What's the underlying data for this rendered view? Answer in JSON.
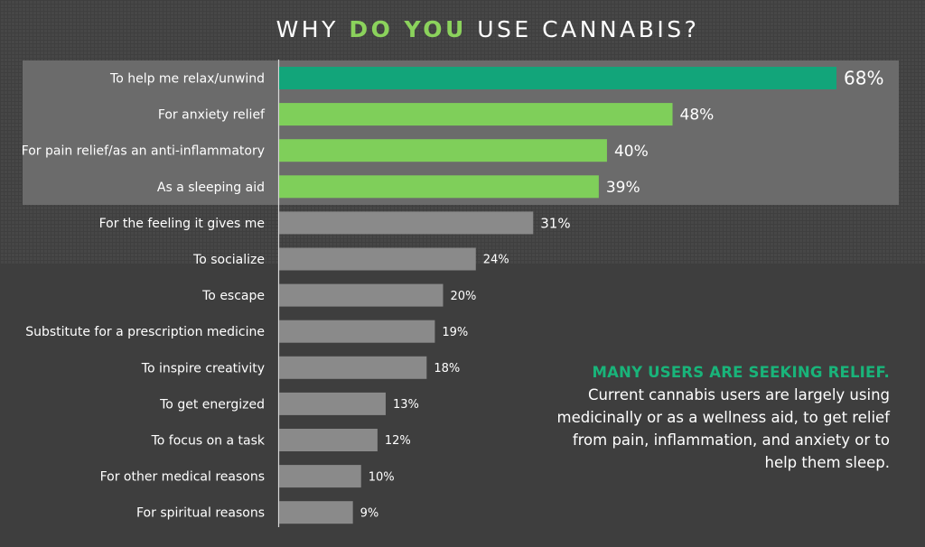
{
  "title": {
    "part1": "WHY ",
    "highlight": "DO YOU",
    "part2": " USE CANNABIS?"
  },
  "callout": {
    "heading": "MANY USERS ARE SEEKING RELIEF.",
    "body": "Current cannabis users are largely using medicinally or as a wellness aid, to get relief from pain, inflammation, and anxiety or to help them sleep."
  },
  "colors": {
    "top_bar": "#12a57a",
    "highlight_bars": "#7fcf5a",
    "other_bars": "#8a8a8a",
    "title_highlight": "#8bd25c",
    "callout_heading": "#19b47a",
    "background": "#3e3e3e",
    "highlight_panel": "#6b6b6b"
  },
  "chart_data": {
    "type": "bar",
    "orientation": "horizontal",
    "categories": [
      "To help me relax/unwind",
      "For anxiety relief",
      "For pain relief/as an anti-inflammatory",
      "As a sleeping aid",
      "For the feeling it gives me",
      "To socialize",
      "To escape",
      "Substitute for a prescription medicine",
      "To inspire creativity",
      "To get energized",
      "To focus on a task",
      "For other medical reasons",
      "For spiritual reasons"
    ],
    "values": [
      68,
      48,
      40,
      39,
      31,
      24,
      20,
      19,
      18,
      13,
      12,
      10,
      9
    ],
    "labels": [
      "68%",
      "48%",
      "40%",
      "39%",
      "31%",
      "24%",
      "20%",
      "19%",
      "18%",
      "13%",
      "12%",
      "10%",
      "9%"
    ],
    "unit": "%",
    "highlighted_count": 4,
    "xlim": [
      0,
      68
    ]
  }
}
